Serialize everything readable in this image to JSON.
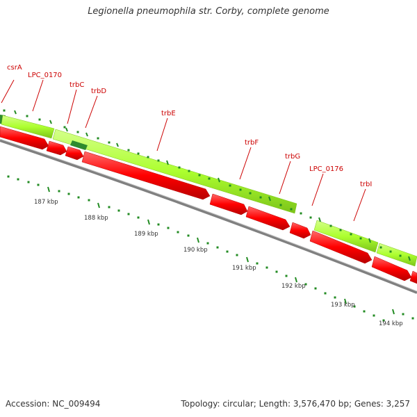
{
  "title": "Legionella pneumophila str. Corby, complete genome",
  "colors": {
    "forward_gene": "#adff2f",
    "forward_gene_dark": "#2e8b2e",
    "reverse_gene": "#ff0000",
    "backbone": "#808080",
    "ticks": "#228b22",
    "gene_label": "#cc0000"
  },
  "genes": [
    {
      "name": "csrA",
      "strand": "+"
    },
    {
      "name": "LPC_0170",
      "strand": "-"
    },
    {
      "name": "trbC",
      "strand": "-"
    },
    {
      "name": "trbD",
      "strand": "-"
    },
    {
      "name": "trbE",
      "strand": "-"
    },
    {
      "name": "trbF",
      "strand": "-"
    },
    {
      "name": "trbG",
      "strand": "-"
    },
    {
      "name": "LPC_0176",
      "strand": "-"
    },
    {
      "name": "trbI",
      "strand": "-"
    }
  ],
  "scale_labels": [
    "187 kbp",
    "188 kbp",
    "189 kbp",
    "190 kbp",
    "191 kbp",
    "192 kbp",
    "193 kbp",
    "194 kbp"
  ],
  "footer": {
    "accession": "Accession: NC_009494",
    "summary": "Topology: circular; Length: 3,576,470 bp; Genes: 3,257"
  }
}
